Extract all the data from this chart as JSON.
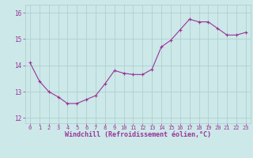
{
  "x": [
    0,
    1,
    2,
    3,
    4,
    5,
    6,
    7,
    8,
    9,
    10,
    11,
    12,
    13,
    14,
    15,
    16,
    17,
    18,
    19,
    20,
    21,
    22,
    23
  ],
  "y": [
    14.1,
    13.4,
    13.0,
    12.8,
    12.55,
    12.55,
    12.7,
    12.85,
    13.3,
    13.8,
    13.7,
    13.65,
    13.65,
    13.85,
    14.7,
    14.95,
    15.35,
    15.75,
    15.65,
    15.65,
    15.4,
    15.15,
    15.15,
    15.25
  ],
  "line_color": "#993399",
  "marker": "+",
  "bg_color": "#cce8e8",
  "grid_color": "#aacccc",
  "xlabel": "Windchill (Refroidissement éolien,°C)",
  "xlabel_color": "#993399",
  "tick_color": "#993399",
  "ylim": [
    11.8,
    16.3
  ],
  "yticks": [
    12,
    13,
    14,
    15,
    16
  ],
  "xticks": [
    0,
    1,
    2,
    3,
    4,
    5,
    6,
    7,
    8,
    9,
    10,
    11,
    12,
    13,
    14,
    15,
    16,
    17,
    18,
    19,
    20,
    21,
    22,
    23
  ],
  "figsize": [
    3.2,
    2.0
  ],
  "dpi": 100
}
